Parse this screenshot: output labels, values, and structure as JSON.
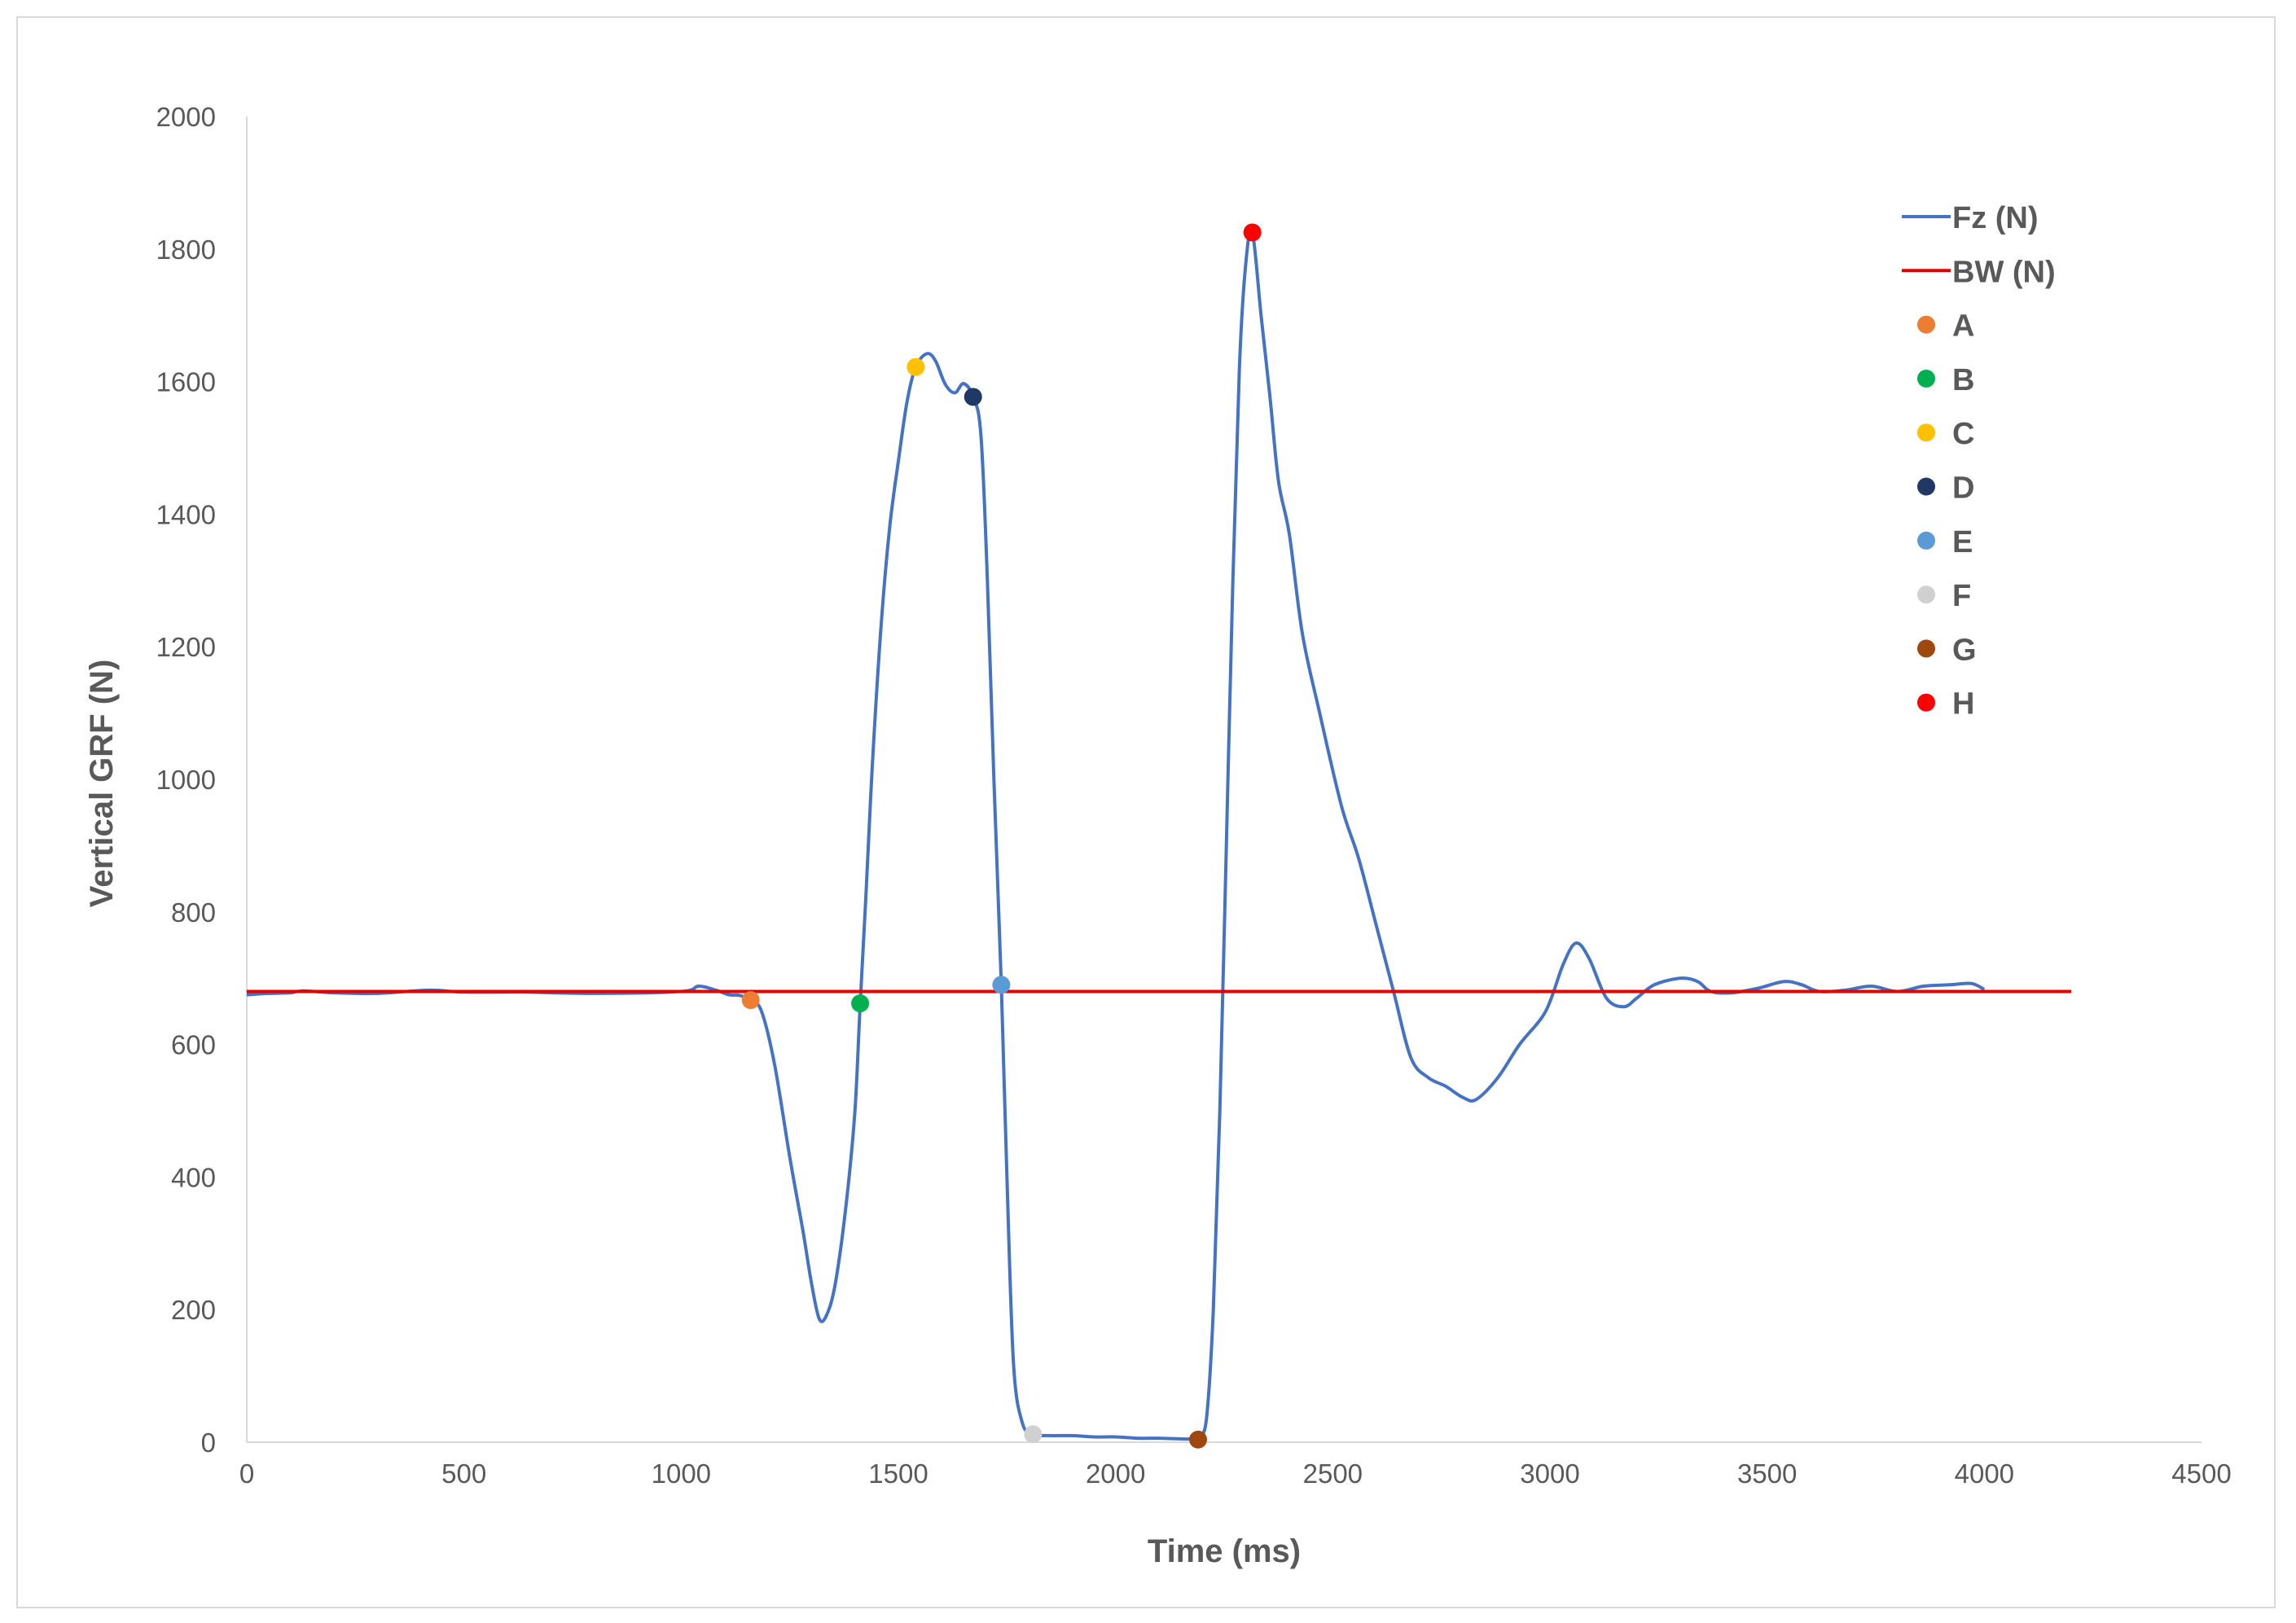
{
  "chart_data": {
    "type": "line",
    "xlabel": "Time (ms)",
    "ylabel": "Vertical GRF (N)",
    "xlim": [
      0,
      4500
    ],
    "ylim": [
      0,
      2000
    ],
    "x_ticks": [
      0,
      500,
      1000,
      1500,
      2000,
      2500,
      3000,
      3500,
      4000,
      4500
    ],
    "y_ticks": [
      0,
      200,
      400,
      600,
      800,
      1000,
      1200,
      1400,
      1600,
      1800,
      2000
    ],
    "grid": false,
    "legend_position": "top-right",
    "series": [
      {
        "name": "Fz (N)",
        "color": "#4472c4",
        "points": [
          [
            0,
            675
          ],
          [
            50,
            677
          ],
          [
            100,
            678
          ],
          [
            130,
            681
          ],
          [
            200,
            678
          ],
          [
            300,
            677
          ],
          [
            420,
            682
          ],
          [
            500,
            679
          ],
          [
            640,
            679
          ],
          [
            800,
            677
          ],
          [
            1000,
            680
          ],
          [
            1040,
            688
          ],
          [
            1080,
            682
          ],
          [
            1110,
            675
          ],
          [
            1135,
            674
          ],
          [
            1160,
            667
          ],
          [
            1185,
            650
          ],
          [
            1215,
            570
          ],
          [
            1250,
            430
          ],
          [
            1280,
            320
          ],
          [
            1300,
            240
          ],
          [
            1318,
            186
          ],
          [
            1335,
            192
          ],
          [
            1355,
            240
          ],
          [
            1380,
            360
          ],
          [
            1400,
            500
          ],
          [
            1412,
            660
          ],
          [
            1425,
            820
          ],
          [
            1440,
            1020
          ],
          [
            1460,
            1230
          ],
          [
            1480,
            1380
          ],
          [
            1500,
            1480
          ],
          [
            1520,
            1570
          ],
          [
            1540,
            1622
          ],
          [
            1565,
            1642
          ],
          [
            1585,
            1632
          ],
          [
            1608,
            1596
          ],
          [
            1630,
            1583
          ],
          [
            1650,
            1597
          ],
          [
            1672,
            1577
          ],
          [
            1690,
            1520
          ],
          [
            1705,
            1300
          ],
          [
            1720,
            1000
          ],
          [
            1737,
            690
          ],
          [
            1750,
            400
          ],
          [
            1765,
            120
          ],
          [
            1785,
            30
          ],
          [
            1810,
            12
          ],
          [
            1850,
            10
          ],
          [
            1900,
            10
          ],
          [
            1950,
            8
          ],
          [
            2000,
            8
          ],
          [
            2050,
            6
          ],
          [
            2100,
            6
          ],
          [
            2150,
            5
          ],
          [
            2180,
            5
          ],
          [
            2195,
            8
          ],
          [
            2210,
            40
          ],
          [
            2225,
            200
          ],
          [
            2240,
            500
          ],
          [
            2255,
            900
          ],
          [
            2270,
            1300
          ],
          [
            2285,
            1620
          ],
          [
            2300,
            1780
          ],
          [
            2315,
            1825
          ],
          [
            2335,
            1700
          ],
          [
            2355,
            1580
          ],
          [
            2375,
            1450
          ],
          [
            2400,
            1370
          ],
          [
            2430,
            1220
          ],
          [
            2470,
            1100
          ],
          [
            2520,
            960
          ],
          [
            2560,
            880
          ],
          [
            2600,
            780
          ],
          [
            2640,
            680
          ],
          [
            2680,
            580
          ],
          [
            2720,
            550
          ],
          [
            2760,
            537
          ],
          [
            2800,
            520
          ],
          [
            2830,
            517
          ],
          [
            2880,
            550
          ],
          [
            2930,
            600
          ],
          [
            2990,
            650
          ],
          [
            3030,
            720
          ],
          [
            3060,
            753
          ],
          [
            3090,
            730
          ],
          [
            3130,
            670
          ],
          [
            3170,
            657
          ],
          [
            3200,
            670
          ],
          [
            3240,
            690
          ],
          [
            3300,
            700
          ],
          [
            3340,
            695
          ],
          [
            3370,
            680
          ],
          [
            3420,
            678
          ],
          [
            3480,
            685
          ],
          [
            3540,
            695
          ],
          [
            3580,
            690
          ],
          [
            3620,
            680
          ],
          [
            3680,
            682
          ],
          [
            3740,
            688
          ],
          [
            3800,
            680
          ],
          [
            3860,
            688
          ],
          [
            3920,
            690
          ],
          [
            3970,
            692
          ],
          [
            4000,
            683
          ]
        ]
      },
      {
        "name": "BW (N)",
        "color": "#e00000",
        "points": [
          [
            0,
            680
          ],
          [
            4200,
            680
          ]
        ]
      }
    ],
    "markers": [
      {
        "name": "A",
        "x": 1160,
        "y": 667,
        "color": "#ed7d31"
      },
      {
        "name": "B",
        "x": 1412,
        "y": 662,
        "color": "#00b050"
      },
      {
        "name": "C",
        "x": 1540,
        "y": 1622,
        "color": "#ffc000"
      },
      {
        "name": "D",
        "x": 1672,
        "y": 1577,
        "color": "#203864"
      },
      {
        "name": "E",
        "x": 1737,
        "y": 690,
        "color": "#5b9bd5"
      },
      {
        "name": "F",
        "x": 1810,
        "y": 12,
        "color": "#d0d0d0"
      },
      {
        "name": "G",
        "x": 2190,
        "y": 4,
        "color": "#9e480e"
      },
      {
        "name": "H",
        "x": 2315,
        "y": 1825,
        "color": "#ff0000"
      }
    ]
  }
}
